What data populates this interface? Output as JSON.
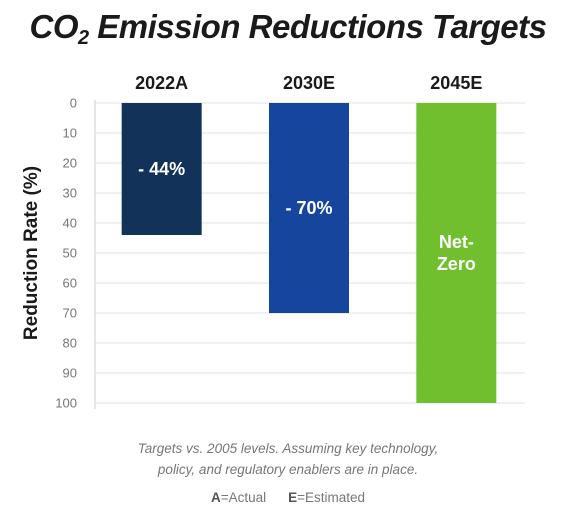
{
  "title": {
    "prefix": "CO",
    "subscript": "2",
    "suffix": " Emission Reductions Targets"
  },
  "chart_data": {
    "type": "bar",
    "orientation": "vertical-inverted",
    "categories": [
      "2022A",
      "2030E",
      "2045E"
    ],
    "values": [
      44,
      70,
      100
    ],
    "data_labels": [
      "- 44%",
      "- 70%",
      "Net-\nZero"
    ],
    "colors": [
      "#13325a",
      "#16459e",
      "#71bf2e"
    ],
    "ylabel": "Reduction Rate (%)",
    "ylim": [
      0,
      100
    ],
    "yticks": [
      0,
      10,
      20,
      30,
      40,
      50,
      60,
      70,
      80,
      90,
      100
    ],
    "y_inverted": true,
    "grid": true
  },
  "footnote": {
    "line1": "Targets vs. 2005 levels. Assuming key technology,",
    "line2": "policy, and regulatory enablers are in place."
  },
  "legend": {
    "a_key": "A",
    "a_text": "=Actual",
    "e_key": "E",
    "e_text": "=Estimated"
  }
}
